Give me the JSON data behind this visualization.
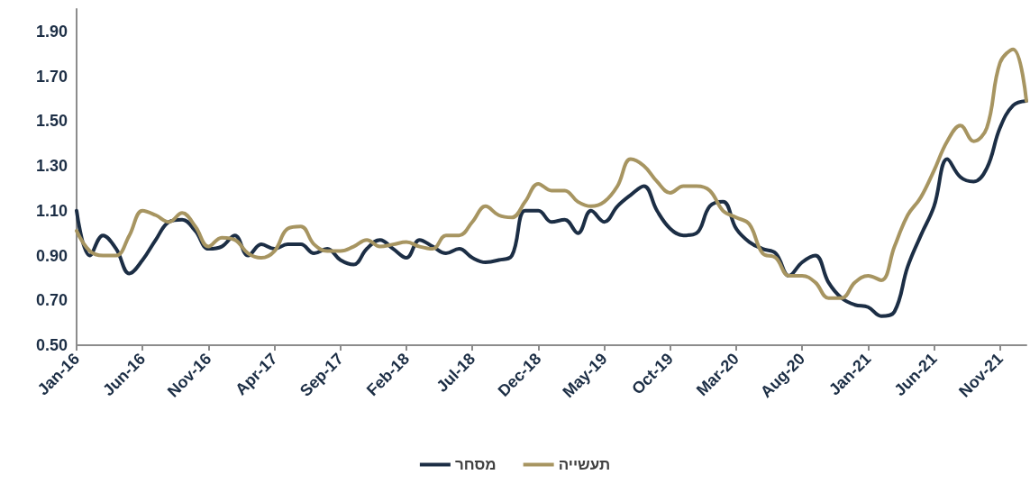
{
  "chart_data": {
    "type": "line",
    "categories": [
      "Jan-16",
      null,
      null,
      null,
      null,
      "Jun-16",
      null,
      null,
      null,
      null,
      "Nov-16",
      null,
      null,
      null,
      null,
      "Apr-17",
      null,
      null,
      null,
      null,
      "Sep-17",
      null,
      null,
      null,
      null,
      "Feb-18",
      null,
      null,
      null,
      null,
      "Jul-18",
      null,
      null,
      null,
      null,
      "Dec-18",
      null,
      null,
      null,
      null,
      "May-19",
      null,
      null,
      null,
      null,
      "Oct-19",
      null,
      null,
      null,
      null,
      "Mar-20",
      null,
      null,
      null,
      null,
      "Aug-20",
      null,
      null,
      null,
      null,
      "Jan-21",
      null,
      null,
      null,
      null,
      "Jun-21",
      null,
      null,
      null,
      null,
      "Nov-21",
      null,
      null
    ],
    "series": [
      {
        "name": "מסחר",
        "color": "#1c2e45",
        "values": [
          1.1,
          0.9,
          0.99,
          0.93,
          0.82,
          0.88,
          0.97,
          1.05,
          1.06,
          1.01,
          0.93,
          0.94,
          0.99,
          0.9,
          0.95,
          0.93,
          0.95,
          0.95,
          0.91,
          0.93,
          0.88,
          0.86,
          0.93,
          0.97,
          0.93,
          0.89,
          0.97,
          0.94,
          0.91,
          0.93,
          0.89,
          0.87,
          0.88,
          0.9,
          1.1,
          1.1,
          1.05,
          1.06,
          1.0,
          1.1,
          1.05,
          1.12,
          1.17,
          1.21,
          1.1,
          1.02,
          0.99,
          1.0,
          1.12,
          1.14,
          1.02,
          0.96,
          0.93,
          0.91,
          0.81,
          0.87,
          0.9,
          0.78,
          0.71,
          0.68,
          0.67,
          0.63,
          0.65,
          0.85,
          0.99,
          1.12,
          1.33,
          1.25,
          1.23,
          1.29,
          1.47,
          1.57,
          1.59
        ]
      },
      {
        "name": "תעשייה",
        "color": "#a79561",
        "values": [
          1.01,
          0.92,
          0.9,
          0.9,
          0.99,
          1.1,
          1.08,
          1.05,
          1.09,
          1.03,
          0.94,
          0.98,
          0.97,
          0.91,
          0.89,
          0.92,
          1.02,
          1.03,
          0.95,
          0.92,
          0.92,
          0.94,
          0.97,
          0.94,
          0.95,
          0.96,
          0.94,
          0.93,
          0.99,
          0.99,
          1.05,
          1.12,
          1.08,
          1.07,
          1.14,
          1.22,
          1.19,
          1.19,
          1.14,
          1.12,
          1.14,
          1.21,
          1.33,
          1.3,
          1.23,
          1.18,
          1.21,
          1.21,
          1.19,
          1.1,
          1.07,
          1.04,
          0.91,
          0.89,
          0.81,
          0.81,
          0.78,
          0.71,
          0.71,
          0.78,
          0.81,
          0.79,
          0.94,
          1.08,
          1.16,
          1.28,
          1.41,
          1.48,
          1.41,
          1.47,
          1.76,
          1.82,
          1.59
        ]
      }
    ],
    "ylim": [
      0.5,
      2.0
    ],
    "yticks": [
      {
        "value": 0.5,
        "label": "0.50"
      },
      {
        "value": 0.7,
        "label": "0.70"
      },
      {
        "value": 0.9,
        "label": "0.90"
      },
      {
        "value": 1.1,
        "label": "1.10"
      },
      {
        "value": 1.3,
        "label": "1.30"
      },
      {
        "value": 1.5,
        "label": "1.50"
      },
      {
        "value": 1.7,
        "label": "1.70"
      },
      {
        "value": 1.9,
        "label": "1.90"
      }
    ],
    "grid": false,
    "legend": "bottom",
    "marker": "none",
    "line_style": "solid"
  }
}
